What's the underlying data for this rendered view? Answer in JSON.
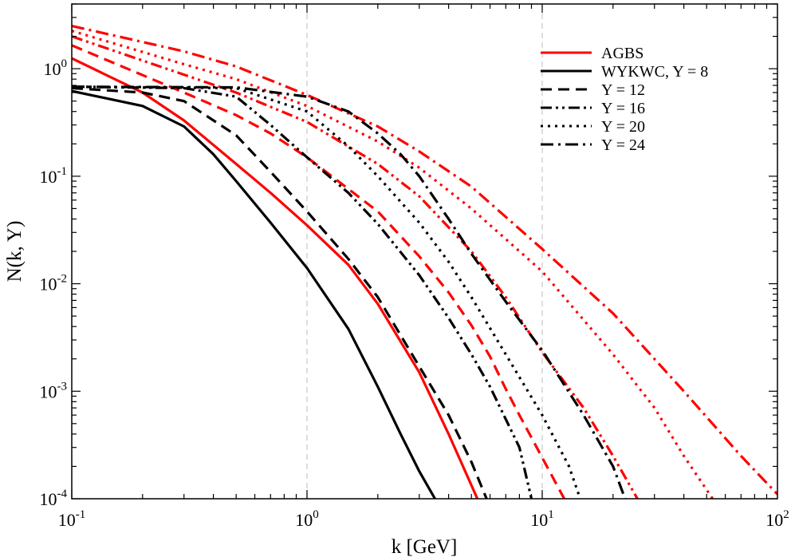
{
  "chart_data": {
    "type": "line",
    "xlabel": "k [GeV]",
    "ylabel": "N(k, Y)",
    "xscale": "log",
    "yscale": "log",
    "xlim": [
      0.1,
      100
    ],
    "ylim": [
      0.0001,
      4
    ],
    "x_ticks": [
      {
        "base": "10",
        "exp": "-1",
        "value": 0.1
      },
      {
        "base": "10",
        "exp": "0",
        "value": 1
      },
      {
        "base": "10",
        "exp": "1",
        "value": 10
      },
      {
        "base": "10",
        "exp": "2",
        "value": 100
      }
    ],
    "y_ticks": [
      {
        "base": "10",
        "exp": "0",
        "value": 1
      },
      {
        "base": "10",
        "exp": "-1",
        "value": 0.1
      },
      {
        "base": "10",
        "exp": "-2",
        "value": 0.01
      },
      {
        "base": "10",
        "exp": "-3",
        "value": 0.001
      },
      {
        "base": "10",
        "exp": "-4",
        "value": 0.0001
      }
    ],
    "reference_lines_x": [
      1,
      10
    ],
    "legend": {
      "position": "top-right",
      "entries": [
        {
          "label": "AGBS",
          "color": "#ff0000",
          "dash": "solid"
        },
        {
          "label": "WYKWC, Y = 8",
          "color": "#000000",
          "dash": "solid"
        },
        {
          "label": "Y = 12",
          "color": "#000000",
          "dash": "dash"
        },
        {
          "label": "Y = 16",
          "color": "#000000",
          "dash": "dashdotdot"
        },
        {
          "label": "Y = 20",
          "color": "#000000",
          "dash": "dot"
        },
        {
          "label": "Y = 24",
          "color": "#000000",
          "dash": "dashdot"
        }
      ]
    },
    "series": [
      {
        "name": "AGBS, Y = 8",
        "model": "AGBS",
        "Y": 8,
        "color": "#ff0000",
        "dash": "solid",
        "x": [
          0.1,
          0.2,
          0.3,
          0.5,
          0.7,
          1.0,
          1.5,
          2.0,
          3.0,
          4.0,
          5.3
        ],
        "y": [
          1.25,
          0.6,
          0.33,
          0.13,
          0.07,
          0.035,
          0.015,
          0.0065,
          0.0015,
          0.0004,
          0.0001
        ]
      },
      {
        "name": "AGBS, Y = 12",
        "model": "AGBS",
        "Y": 12,
        "color": "#ff0000",
        "dash": "dash",
        "x": [
          0.1,
          0.3,
          0.5,
          0.7,
          1.0,
          2.0,
          3.0,
          4.0,
          5.0,
          6.0,
          7.0,
          8.0,
          12.4
        ],
        "y": [
          1.65,
          0.6,
          0.37,
          0.25,
          0.15,
          0.047,
          0.018,
          0.0083,
          0.0041,
          0.0021,
          0.00105,
          0.0006,
          0.0001
        ]
      },
      {
        "name": "AGBS, Y = 16",
        "model": "AGBS",
        "Y": 16,
        "color": "#ff0000",
        "dash": "dashdotdot",
        "x": [
          0.1,
          0.3,
          0.5,
          1.0,
          2.0,
          3.0,
          5.0,
          7.0,
          10.0,
          15.0,
          20.0,
          25.4
        ],
        "y": [
          2.0,
          0.88,
          0.6,
          0.32,
          0.13,
          0.065,
          0.02,
          0.0075,
          0.0023,
          0.0007,
          0.00025,
          0.0001
        ]
      },
      {
        "name": "AGBS, Y = 20",
        "model": "AGBS",
        "Y": 20,
        "color": "#ff0000",
        "dash": "dot",
        "x": [
          0.1,
          0.3,
          0.5,
          1.0,
          2.0,
          3.0,
          5.0,
          10.0,
          20.0,
          30.0,
          40.0,
          53.0
        ],
        "y": [
          2.25,
          1.1,
          0.8,
          0.45,
          0.21,
          0.12,
          0.05,
          0.013,
          0.0022,
          0.0007,
          0.00025,
          0.0001
        ]
      },
      {
        "name": "AGBS, Y = 24",
        "model": "AGBS",
        "Y": 24,
        "color": "#ff0000",
        "dash": "dashdot",
        "x": [
          0.1,
          0.3,
          0.5,
          1.0,
          2.0,
          3.0,
          5.0,
          10.0,
          20.0,
          40.0,
          70.0,
          100.0
        ],
        "y": [
          2.5,
          1.45,
          1.05,
          0.57,
          0.29,
          0.17,
          0.08,
          0.021,
          0.0053,
          0.001,
          0.00025,
          0.00011
        ]
      },
      {
        "name": "WYKWC, Y = 8",
        "model": "WYKWC",
        "Y": 8,
        "color": "#000000",
        "dash": "solid",
        "x": [
          0.1,
          0.2,
          0.3,
          0.4,
          0.5,
          0.7,
          1.0,
          1.5,
          2.0,
          2.5,
          3.0,
          3.5
        ],
        "y": [
          0.62,
          0.45,
          0.29,
          0.16,
          0.09,
          0.037,
          0.014,
          0.0038,
          0.0011,
          0.0004,
          0.00018,
          0.0001
        ]
      },
      {
        "name": "WYKWC, Y = 12",
        "model": "WYKWC",
        "Y": 12,
        "color": "#000000",
        "dash": "dash",
        "x": [
          0.1,
          0.2,
          0.3,
          0.5,
          0.7,
          1.0,
          1.5,
          2.0,
          3.0,
          4.0,
          5.0,
          5.8
        ],
        "y": [
          0.66,
          0.6,
          0.5,
          0.24,
          0.11,
          0.047,
          0.017,
          0.0075,
          0.0017,
          0.0006,
          0.00022,
          0.0001
        ]
      },
      {
        "name": "WYKWC, Y = 16",
        "model": "WYKWC",
        "Y": 16,
        "color": "#000000",
        "dash": "dashdotdot",
        "x": [
          0.1,
          0.3,
          0.5,
          0.7,
          1.0,
          1.5,
          2.0,
          3.0,
          4.0,
          5.0,
          6.0,
          8.0,
          9.0
        ],
        "y": [
          0.68,
          0.66,
          0.55,
          0.3,
          0.15,
          0.07,
          0.036,
          0.012,
          0.0048,
          0.0022,
          0.0011,
          0.0003,
          0.0001
        ]
      },
      {
        "name": "WYKWC, Y = 20",
        "model": "WYKWC",
        "Y": 20,
        "color": "#000000",
        "dash": "dot",
        "x": [
          0.1,
          0.5,
          1.0,
          1.5,
          2.0,
          3.0,
          4.0,
          5.0,
          7.0,
          10.0,
          13.0,
          14.5
        ],
        "y": [
          0.68,
          0.66,
          0.4,
          0.19,
          0.1,
          0.037,
          0.016,
          0.0075,
          0.0022,
          0.0006,
          0.0002,
          0.0001
        ]
      },
      {
        "name": "WYKWC, Y = 24",
        "model": "WYKWC",
        "Y": 24,
        "color": "#000000",
        "dash": "dashdot",
        "x": [
          0.1,
          0.5,
          1.0,
          1.5,
          2.0,
          2.5,
          3.0,
          4.0,
          5.0,
          7.0,
          10.0,
          15.0,
          20.0,
          22.5
        ],
        "y": [
          0.68,
          0.67,
          0.55,
          0.4,
          0.25,
          0.16,
          0.1,
          0.04,
          0.019,
          0.0068,
          0.0024,
          0.0006,
          0.0002,
          0.0001
        ]
      }
    ]
  }
}
